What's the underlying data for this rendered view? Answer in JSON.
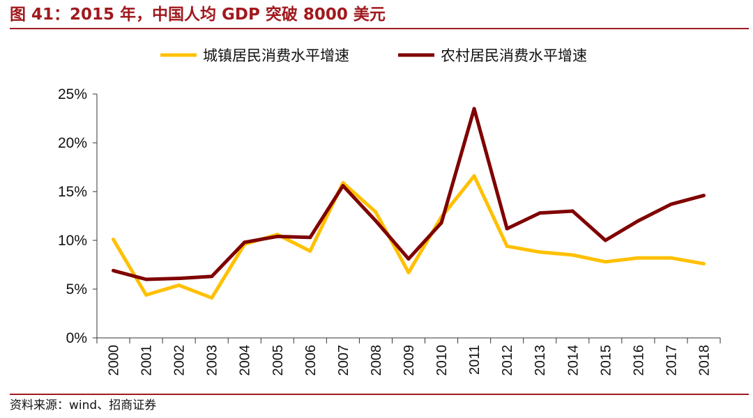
{
  "figure": {
    "title": "图 41：2015 年，中国人均 GDP 突破 8000 美元",
    "source": "资料来源：wind、招商证券",
    "title_color": "#A0191E"
  },
  "chart_data": {
    "type": "line",
    "title": "",
    "xlabel": "",
    "ylabel": "",
    "ylim": [
      0,
      25
    ],
    "y_ticks": [
      0,
      5,
      10,
      15,
      20,
      25
    ],
    "y_tick_labels": [
      "0%",
      "5%",
      "10%",
      "15%",
      "20%",
      "25%"
    ],
    "grid": false,
    "legend_position": "top",
    "categories": [
      "2000",
      "2001",
      "2002",
      "2003",
      "2004",
      "2005",
      "2006",
      "2007",
      "2008",
      "2009",
      "2010",
      "2011",
      "2012",
      "2013",
      "2014",
      "2015",
      "2016",
      "2017",
      "2018"
    ],
    "series": [
      {
        "name": "城镇居民消费水平增速",
        "color": "#FFC000",
        "values": [
          10.1,
          4.4,
          5.4,
          4.1,
          9.6,
          10.6,
          8.9,
          15.9,
          12.9,
          6.7,
          12.4,
          16.6,
          9.4,
          8.8,
          8.5,
          7.8,
          8.2,
          8.2,
          7.6
        ]
      },
      {
        "name": "农村居民消费水平增速",
        "color": "#7F0000",
        "values": [
          6.9,
          6.0,
          6.1,
          6.3,
          9.8,
          10.4,
          10.3,
          15.6,
          12.0,
          8.1,
          11.8,
          23.5,
          11.2,
          12.8,
          13.0,
          10.0,
          12.0,
          13.7,
          14.6
        ]
      }
    ]
  }
}
